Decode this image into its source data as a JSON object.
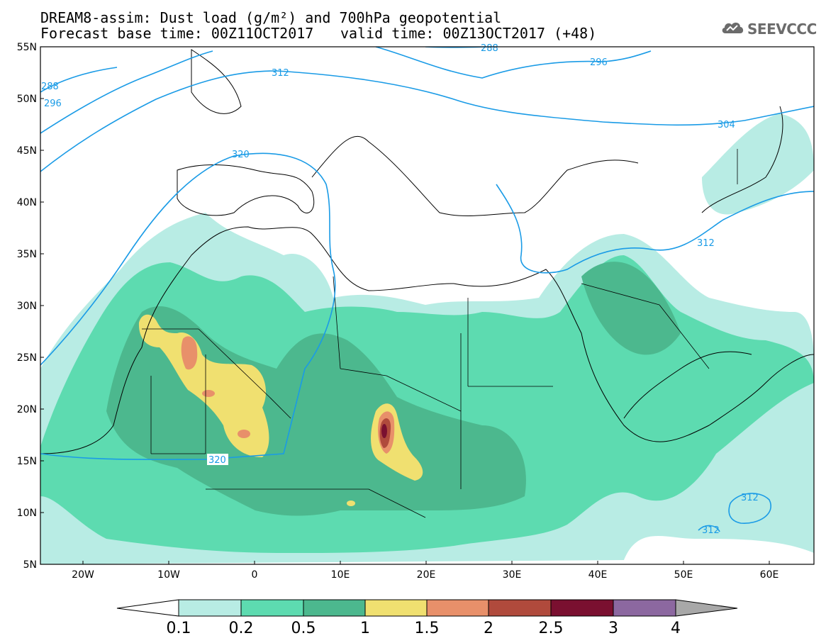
{
  "header": {
    "line1": "DREAM8-assim: Dust load (g/m²) and 700hPa geopotential",
    "line2_left": "Forecast base time: 00Z11OCT2017",
    "line2_right": "valid time: 00Z13OCT2017 (+48)"
  },
  "logo": {
    "text": "SEEVCCC",
    "icon": "cloud-logo-icon"
  },
  "axes": {
    "lat_labels": [
      "55N",
      "50N",
      "45N",
      "40N",
      "35N",
      "30N",
      "25N",
      "20N",
      "15N",
      "10N",
      "5N"
    ],
    "lon_labels": [
      "20W",
      "10W",
      "0",
      "10E",
      "20E",
      "30E",
      "40E",
      "50E",
      "60E"
    ]
  },
  "contour_labels": [
    "288",
    "296",
    "312",
    "320",
    "288",
    "296",
    "304",
    "312",
    "320",
    "312",
    "312"
  ],
  "colorbar": {
    "labels": [
      "0.1",
      "0.2",
      "0.5",
      "1",
      "1.5",
      "2",
      "2.5",
      "3",
      "4"
    ],
    "colors": [
      "#b8ece4",
      "#5ddbb0",
      "#4cb88e",
      "#f0e070",
      "#e8906a",
      "#b04a3c",
      "#7a1030",
      "#8c68a0",
      "#a8a8a8"
    ],
    "under_color": "#ffffff"
  },
  "colors": {
    "contour": "#1a9be6",
    "border": "#000000"
  }
}
